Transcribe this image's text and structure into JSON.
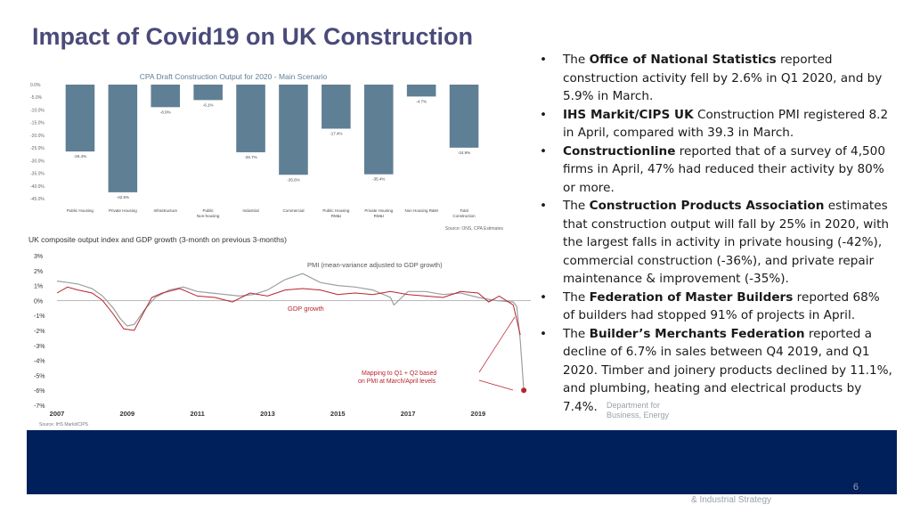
{
  "slide": {
    "title": "Impact of Covid19 on UK Construction",
    "page_number": "6",
    "dept_logo_lines": [
      "Department for",
      "Business, Energy"
    ],
    "dept_logo_bottom": "& Industrial Strategy",
    "colors": {
      "bar": "#5f7f95",
      "bottom_bar": "#00205b",
      "title": "#4a4a7a",
      "pmi": "#9aa0a0",
      "gdp": "#b8232f"
    }
  },
  "bullets": [
    {
      "pre": "The ",
      "bold": "Office of National Statistics",
      "post": " reported construction activity fell by 2.6% in Q1 2020, and by 5.9% in March."
    },
    {
      "pre": "",
      "bold": "IHS Markit/CIPS UK",
      "post": " Construction PMI registered 8.2 in April, compared with 39.3 in March."
    },
    {
      "pre": "",
      "bold": "Constructionline",
      "post": " reported that of a survey of 4,500 firms in April, 47% had reduced their activity by 80% or more."
    },
    {
      "pre": "The ",
      "bold": "Construction Products Association",
      "post": " estimates that construction output will fall by 25% in 2020, with the largest falls in activity in private housing (-42%), commercial construction (-36%), and private repair maintenance & improvement (-35%)."
    },
    {
      "pre": "The ",
      "bold": "Federation of Master Builders",
      "post": " reported 68% of builders had stopped 91% of projects in April."
    },
    {
      "pre": "The ",
      "bold": "Builder’s Merchants Federation",
      "post": " reported a decline of 6.7% in sales between Q4 2019, and Q1 2020. Timber and joinery products declined by 11.1%, and plumbing, heating and electrical products by 7.4%."
    }
  ],
  "chart_data": [
    {
      "type": "bar",
      "title": "CPA Draft Construction Output for 2020 - Main Scenario",
      "categories": [
        "Public Housing",
        "Private Housing",
        "Infrastructure",
        "Public Non-housing",
        "Industrial",
        "Commercial",
        "Public Housing RM&I",
        "Private Housing RM&I",
        "Non Housing R&M",
        "Total Construction"
      ],
      "values": [
        -26.4,
        -42.5,
        -8.9,
        -6.1,
        -26.7,
        -35.6,
        -17.4,
        -35.4,
        -4.7,
        -24.9
      ],
      "value_labels": [
        "-26.4%",
        "-42.5%",
        "-8.9%",
        "-6.1%",
        "-26.7%",
        "-35.6%",
        "-17.4%",
        "-35.4%",
        "-4.7%",
        "-24.9%"
      ],
      "ylim": [
        -45,
        0
      ],
      "y_ticks": [
        "0.0%",
        "-5.0%",
        "-10.0%",
        "-15.0%",
        "-20.0%",
        "-25.0%",
        "-30.0%",
        "-35.0%",
        "-40.0%",
        "-45.0%"
      ],
      "source": "Source: ONS, CPA Estimates"
    },
    {
      "type": "line",
      "title": "UK composite output index and GDP growth (3-month on previous 3-months)",
      "ylim": [
        -7,
        3
      ],
      "y_ticks": [
        "3%",
        "2%",
        "1%",
        "0%",
        "-1%",
        "-2%",
        "-3%",
        "-4%",
        "-5%",
        "-6%",
        "-7%"
      ],
      "x_ticks": [
        "2007",
        "2009",
        "2011",
        "2013",
        "2015",
        "2017",
        "2019"
      ],
      "xlim": [
        2007,
        2020.5
      ],
      "series": [
        {
          "name": "PMI (mean-variance adjusted to GDP growth)",
          "x": [
            2007.0,
            2007.3,
            2007.6,
            2008.0,
            2008.3,
            2008.6,
            2008.8,
            2009.0,
            2009.2,
            2009.5,
            2009.8,
            2010.2,
            2010.6,
            2011.0,
            2011.4,
            2011.8,
            2012.2,
            2012.6,
            2013.0,
            2013.5,
            2014.0,
            2014.5,
            2015.0,
            2015.5,
            2016.0,
            2016.5,
            2016.6,
            2017.0,
            2017.5,
            2018.0,
            2018.5,
            2019.0,
            2019.5,
            2020.0,
            2020.1,
            2020.2,
            2020.3
          ],
          "y": [
            1.3,
            1.2,
            1.1,
            0.8,
            0.3,
            -0.5,
            -1.2,
            -1.7,
            -1.6,
            -0.6,
            0.2,
            0.7,
            0.9,
            0.6,
            0.5,
            0.4,
            0.3,
            0.4,
            0.7,
            1.4,
            1.8,
            1.2,
            1.0,
            0.9,
            0.7,
            0.2,
            -0.3,
            0.6,
            0.6,
            0.4,
            0.5,
            0.2,
            0.0,
            -0.1,
            -0.4,
            -2.7,
            -6.0
          ]
        },
        {
          "name": "GDP growth",
          "x": [
            2007.0,
            2007.3,
            2007.6,
            2008.0,
            2008.3,
            2008.6,
            2008.9,
            2009.2,
            2009.4,
            2009.7,
            2010.0,
            2010.5,
            2011.0,
            2011.5,
            2012.0,
            2012.5,
            2013.0,
            2013.5,
            2014.0,
            2014.5,
            2015.0,
            2015.5,
            2016.0,
            2016.5,
            2017.0,
            2017.5,
            2018.0,
            2018.5,
            2019.0,
            2019.3,
            2019.6,
            2020.0,
            2020.2
          ],
          "y": [
            0.5,
            0.9,
            0.7,
            0.5,
            0.0,
            -0.9,
            -1.9,
            -2.0,
            -1.1,
            0.2,
            0.5,
            0.8,
            0.3,
            0.2,
            -0.1,
            0.5,
            0.3,
            0.7,
            0.8,
            0.7,
            0.4,
            0.5,
            0.4,
            0.6,
            0.4,
            0.3,
            0.2,
            0.6,
            0.5,
            -0.1,
            0.3,
            -0.3,
            -2.3
          ]
        }
      ],
      "annotations": [
        "PMI (mean-variance adjusted to GDP growth)",
        "GDP growth",
        "Mapping to Q1 + Q2 based",
        "on PMI at March/April levels"
      ],
      "source": "Source: IHS Markit/CIPS"
    }
  ]
}
